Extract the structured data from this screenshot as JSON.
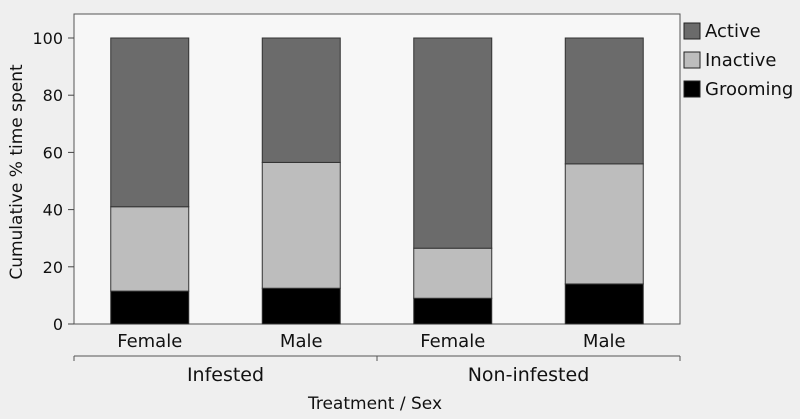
{
  "chart_data": {
    "type": "bar",
    "stacked": true,
    "title": "",
    "xlabel": "Treatment / Sex",
    "ylabel": "Cumulative % time spent",
    "ylim": [
      0,
      100
    ],
    "yticks": [
      "0",
      "20",
      "40",
      "60",
      "80",
      "100"
    ],
    "grid": false,
    "legend_position": "right",
    "categories": [
      "Female",
      "Male",
      "Female",
      "Male"
    ],
    "groups": [
      {
        "label": "Infested",
        "categories": [
          0,
          1
        ]
      },
      {
        "label": "Non-infested",
        "categories": [
          2,
          3
        ]
      }
    ],
    "series": [
      {
        "name": "Grooming",
        "color": "#000000",
        "values": [
          11.5,
          12.5,
          9,
          14
        ]
      },
      {
        "name": "Inactive",
        "color": "#bdbdbd",
        "values": [
          29.5,
          44,
          17.5,
          42
        ]
      },
      {
        "name": "Active",
        "color": "#6b6b6b",
        "values": [
          59,
          43.5,
          73.5,
          44
        ]
      }
    ],
    "legend_order": [
      "Active",
      "Inactive",
      "Grooming"
    ]
  }
}
